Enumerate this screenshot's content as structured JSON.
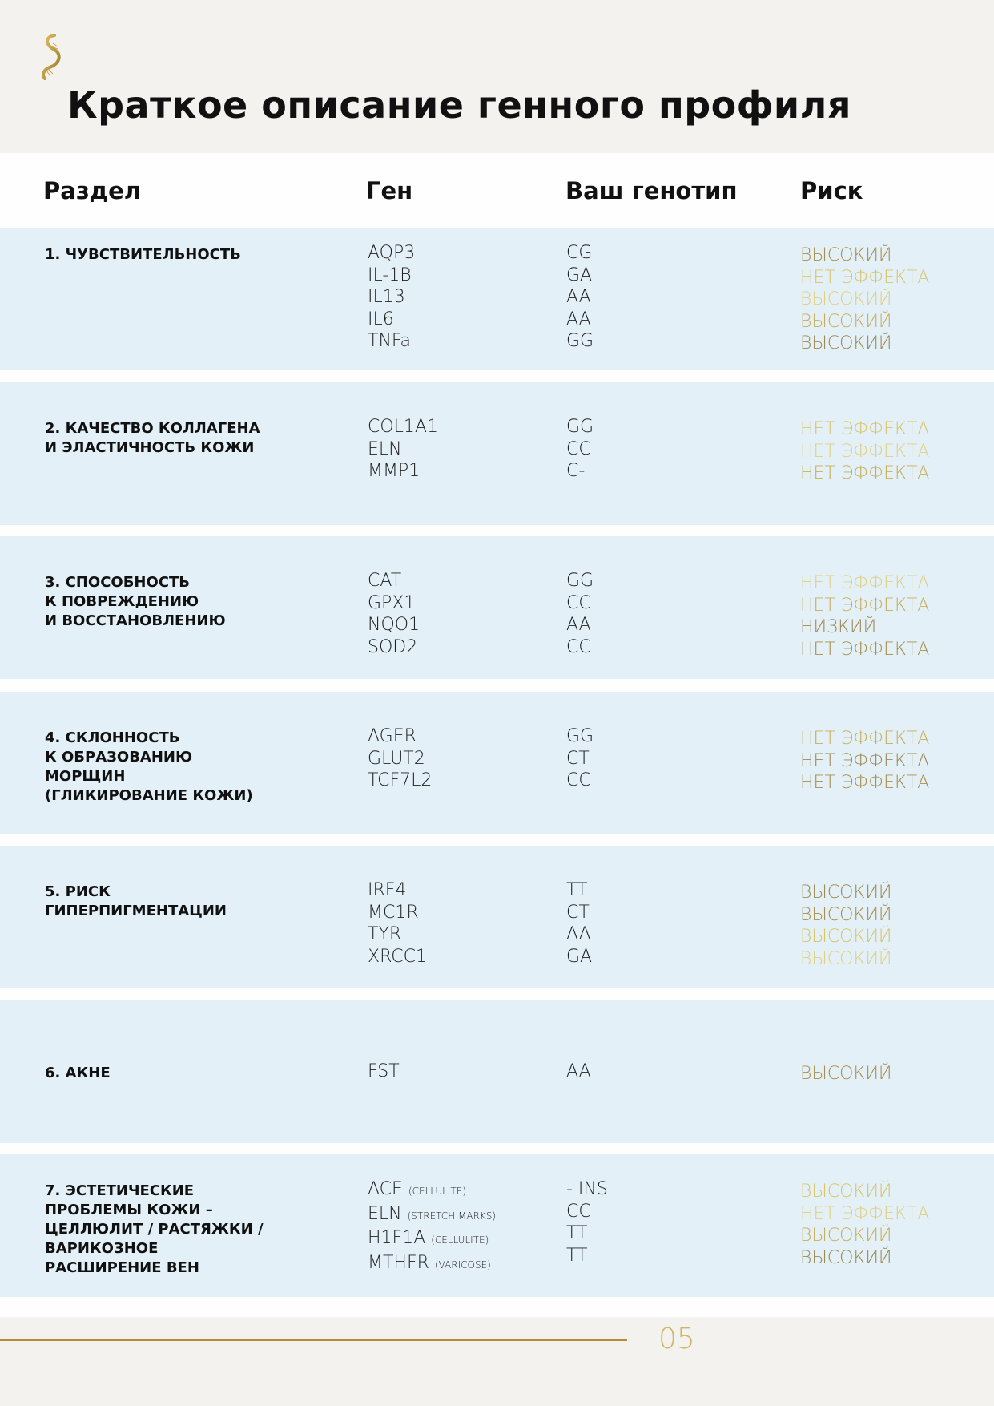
{
  "title": "Краткое описание генного профиля",
  "headers": {
    "section": "Раздел",
    "gene": "Ген",
    "genotype": "Ваш генотип",
    "risk": "Риск"
  },
  "colors": {
    "gold_dark": "#a88f4c",
    "gold_light": "#d8c468",
    "row_bg": "#e3f0f7"
  },
  "rows": [
    {
      "section": "1. Чувствительность",
      "genes": [
        {
          "name": "AQP3"
        },
        {
          "name": "IL-1B"
        },
        {
          "name": "IL13"
        },
        {
          "name": "IL6"
        },
        {
          "name": "TNFa"
        }
      ],
      "genotypes": [
        "CG",
        "GA",
        "AA",
        "AA",
        "GG"
      ],
      "risks": [
        "ВЫСОКИЙ",
        "НЕТ ЭФФЕКТА",
        "ВЫСОКИЙ",
        "ВЫСОКИЙ",
        "ВЫСОКИЙ"
      ]
    },
    {
      "section": "2. Качество коллагена\nи эластичность кожи",
      "genes": [
        {
          "name": "COL1A1"
        },
        {
          "name": "ELN"
        },
        {
          "name": "MMP1"
        }
      ],
      "genotypes": [
        "GG",
        "CC",
        "C-"
      ],
      "risks": [
        "НЕТ ЭФФЕКТА",
        "НЕТ ЭФФЕКТА",
        "НЕТ ЭФФЕКТА"
      ]
    },
    {
      "section": "3. Способность\nк повреждению\nи восстановлению",
      "genes": [
        {
          "name": "CAT"
        },
        {
          "name": "GPX1"
        },
        {
          "name": "NQO1"
        },
        {
          "name": "SOD2"
        }
      ],
      "genotypes": [
        "GG",
        "CC",
        "AA",
        "CC"
      ],
      "risks": [
        "НЕТ ЭФФЕКТА",
        "НЕТ ЭФФЕКТА",
        "НИЗКИЙ",
        "НЕТ ЭФФЕКТА"
      ]
    },
    {
      "section": "4. Склонность\nк образованию\nморщин\n(гликирование кожи)",
      "genes": [
        {
          "name": "AGER"
        },
        {
          "name": "GLUT2"
        },
        {
          "name": "TCF7L2"
        }
      ],
      "genotypes": [
        "GG",
        "CT",
        "CC"
      ],
      "risks": [
        "НЕТ ЭФФЕКТА",
        "НЕТ ЭФФЕКТА",
        "НЕТ ЭФФЕКТА"
      ]
    },
    {
      "section": "5. Риск\nгиперпигментации",
      "genes": [
        {
          "name": "IRF4"
        },
        {
          "name": "MC1R"
        },
        {
          "name": "TYR"
        },
        {
          "name": "XRCC1"
        }
      ],
      "genotypes": [
        "TT",
        "CT",
        "AA",
        "GA"
      ],
      "risks": [
        "ВЫСОКИЙ",
        "ВЫСОКИЙ",
        "ВЫСОКИЙ",
        "ВЫСОКИЙ"
      ]
    },
    {
      "section": "6. Акне",
      "genes": [
        {
          "name": "FST"
        }
      ],
      "genotypes": [
        "AA"
      ],
      "risks": [
        "ВЫСОКИЙ"
      ]
    },
    {
      "section": "7. Эстетические\nпроблемы кожи –\nцеллюлит / растяжки /\nварикозное\nрасширение вен",
      "genes": [
        {
          "name": "ACE",
          "note": "(cellulite)"
        },
        {
          "name": "ELN",
          "note": "(stretch marks)"
        },
        {
          "name": "H1F1A",
          "note": "(cellulite)"
        },
        {
          "name": "MTHFR",
          "note": "(varicose)"
        }
      ],
      "genotypes": [
        "- INS",
        "CC",
        "TT",
        "TT"
      ],
      "risks": [
        "ВЫСОКИЙ",
        "НЕТ ЭФФЕКТА",
        "ВЫСОКИЙ",
        "ВЫСОКИЙ"
      ]
    }
  ],
  "page_number": "05"
}
